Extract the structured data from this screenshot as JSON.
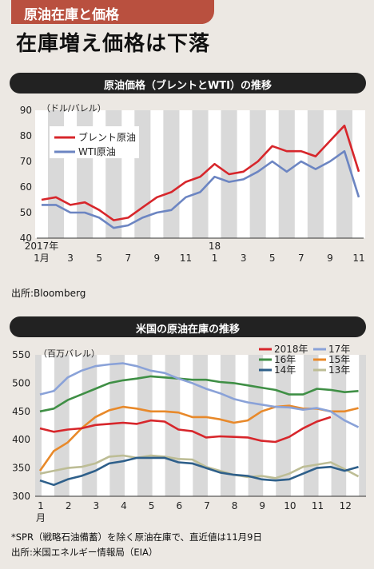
{
  "header": {
    "tab_label": "原油在庫と価格",
    "headline": "在庫増え価格は下落"
  },
  "chart1_bar_title": "原油価格（ブレントとWTI）の推移",
  "chart1_source": "出所:Bloomberg",
  "chart2_bar_title": "米国の原油在庫の推移",
  "footnote": "*SPR（戦略石油備蓄）を除く原油在庫で、直近値は11月9日",
  "chart2_source": "出所:米国エネルギー情報局（EIA）",
  "chart_data": [
    {
      "type": "line",
      "ylabel": "（ドル/バレル）",
      "ylim": [
        40,
        90
      ],
      "yticks": [
        "90",
        "80",
        "70",
        "60",
        "50",
        "40"
      ],
      "xticks": [
        "1",
        "3",
        "5",
        "7",
        "9",
        "11",
        "1",
        "3",
        "5",
        "7",
        "9",
        "11"
      ],
      "xtick_year_labels": [
        "2017年",
        "18"
      ],
      "xtick_month_suffix": "月",
      "grid": "vertical bands",
      "legend_position": "top-left",
      "x": [
        "2017-01",
        "2017-02",
        "2017-03",
        "2017-04",
        "2017-05",
        "2017-06",
        "2017-07",
        "2017-08",
        "2017-09",
        "2017-10",
        "2017-11",
        "2017-12",
        "2018-01",
        "2018-02",
        "2018-03",
        "2018-04",
        "2018-05",
        "2018-06",
        "2018-07",
        "2018-08",
        "2018-09",
        "2018-10",
        "2018-11"
      ],
      "series": [
        {
          "name": "ブレント原油",
          "color": "#d7262b",
          "values": [
            55,
            56,
            53,
            54,
            51,
            47,
            48,
            52,
            56,
            58,
            62,
            64,
            69,
            65,
            66,
            70,
            76,
            74,
            74,
            72,
            78,
            84,
            66
          ]
        },
        {
          "name": "WTI原油",
          "color": "#6c85c2",
          "values": [
            53,
            53,
            50,
            50,
            48,
            44,
            45,
            48,
            50,
            51,
            56,
            58,
            64,
            62,
            63,
            66,
            70,
            66,
            70,
            67,
            70,
            74,
            56
          ]
        }
      ]
    },
    {
      "type": "line",
      "ylabel": "（百万バレル）",
      "ylim": [
        300,
        550
      ],
      "yticks": [
        "550",
        "500",
        "450",
        "400",
        "350",
        "300"
      ],
      "xticks": [
        "1",
        "2",
        "3",
        "4",
        "5",
        "6",
        "7",
        "8",
        "9",
        "10",
        "11",
        "12"
      ],
      "xtick_month_suffix": "月",
      "grid": "vertical bands",
      "legend_position": "top-right",
      "x": [
        "1",
        "1.5",
        "2",
        "2.5",
        "3",
        "3.5",
        "4",
        "4.5",
        "5",
        "5.5",
        "6",
        "6.5",
        "7",
        "7.5",
        "8",
        "8.5",
        "9",
        "9.5",
        "10",
        "10.5",
        "11",
        "11.5",
        "12",
        "12.5"
      ],
      "series": [
        {
          "name": "2018年",
          "color": "#d7262b",
          "values": [
            420,
            414,
            418,
            420,
            426,
            428,
            430,
            428,
            434,
            432,
            418,
            415,
            404,
            406,
            405,
            404,
            398,
            396,
            405,
            420,
            432,
            440,
            null,
            null
          ]
        },
        {
          "name": "17年",
          "color": "#8aa2d8",
          "values": [
            480,
            486,
            510,
            522,
            530,
            533,
            535,
            530,
            522,
            518,
            508,
            500,
            490,
            482,
            472,
            466,
            462,
            458,
            457,
            453,
            456,
            450,
            434,
            422
          ]
        },
        {
          "name": "16年",
          "color": "#3f8f45",
          "values": [
            450,
            455,
            470,
            480,
            490,
            500,
            505,
            508,
            512,
            510,
            508,
            506,
            506,
            502,
            500,
            496,
            492,
            488,
            480,
            480,
            490,
            488,
            484,
            486
          ]
        },
        {
          "name": "15年",
          "color": "#e8892a",
          "values": [
            345,
            380,
            395,
            420,
            440,
            452,
            458,
            455,
            450,
            450,
            448,
            440,
            440,
            436,
            430,
            434,
            450,
            458,
            460,
            455,
            455,
            450,
            450,
            456
          ]
        },
        {
          "name": "14年",
          "color": "#2e5f8a",
          "values": [
            328,
            320,
            330,
            336,
            345,
            358,
            362,
            368,
            368,
            368,
            360,
            358,
            350,
            342,
            338,
            336,
            330,
            328,
            330,
            340,
            350,
            352,
            345,
            352
          ]
        },
        {
          "name": "13年",
          "color": "#bdbd95",
          "values": [
            340,
            345,
            350,
            352,
            358,
            370,
            372,
            368,
            372,
            370,
            366,
            365,
            352,
            345,
            338,
            334,
            336,
            332,
            340,
            352,
            356,
            360,
            348,
            335
          ]
        }
      ]
    }
  ]
}
